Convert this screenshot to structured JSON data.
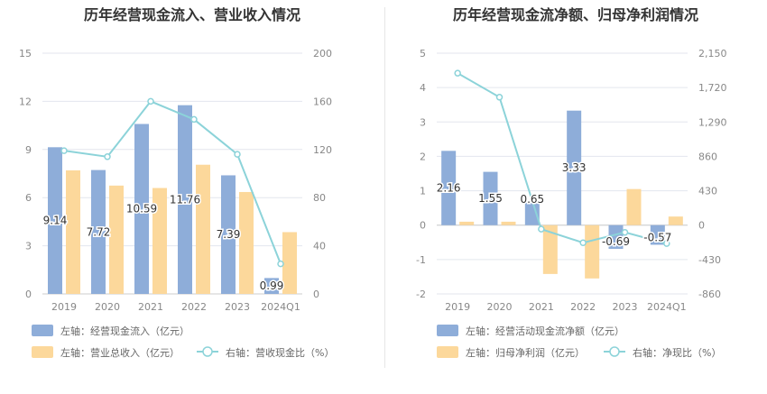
{
  "chart_data": [
    {
      "type": "bar",
      "title": "历年经营现金流入、营业收入情况",
      "categories": [
        "2019",
        "2020",
        "2021",
        "2022",
        "2023",
        "2024Q1"
      ],
      "y_left": {
        "min": 0,
        "max": 15,
        "ticks": [
          "0",
          "3",
          "6",
          "9",
          "12",
          "15"
        ]
      },
      "y_right": {
        "min": 0,
        "max": 200,
        "ticks": [
          "0",
          "40",
          "80",
          "120",
          "160",
          "200"
        ]
      },
      "series": [
        {
          "name": "左轴：经营现金流入（亿元）",
          "type": "bar",
          "axis": "left",
          "color": "#8eadd9",
          "values": [
            9.14,
            7.72,
            10.59,
            11.76,
            7.39,
            0.99
          ],
          "labels": [
            "9.14",
            "7.72",
            "10.59",
            "11.76",
            "7.39",
            "0.99"
          ]
        },
        {
          "name": "左轴：营业总收入（亿元）",
          "type": "bar",
          "axis": "left",
          "color": "#fcd89b",
          "values": [
            7.7,
            6.75,
            6.6,
            8.05,
            6.35,
            3.85
          ]
        },
        {
          "name": "右轴：营收现金比（%）",
          "type": "line",
          "axis": "right",
          "color": "#8cd3d9",
          "values": [
            119,
            114,
            160,
            145,
            116,
            25
          ]
        }
      ],
      "legend_position": "bottom"
    },
    {
      "type": "bar",
      "title": "历年经营现金流净额、归母净利润情况",
      "categories": [
        "2019",
        "2020",
        "2021",
        "2022",
        "2023",
        "2024Q1"
      ],
      "y_left": {
        "min": -2,
        "max": 5,
        "ticks": [
          "-2",
          "-1",
          "0",
          "1",
          "2",
          "3",
          "4",
          "5"
        ]
      },
      "y_right": {
        "min": -860,
        "max": 2150,
        "ticks": [
          "-860",
          "-430",
          "0",
          "430",
          "860",
          "1,290",
          "1,720",
          "2,150"
        ]
      },
      "series": [
        {
          "name": "左轴：经营活动现金流净额（亿元）",
          "type": "bar",
          "axis": "left",
          "color": "#8eadd9",
          "values": [
            2.16,
            1.55,
            0.65,
            3.33,
            -0.69,
            -0.57
          ],
          "labels": [
            "2.16",
            "1.55",
            "0.65",
            "3.33",
            "-0.69",
            "-0.57"
          ]
        },
        {
          "name": "左轴：归母净利润（亿元）",
          "type": "bar",
          "axis": "left",
          "color": "#fcd89b",
          "values": [
            0.1,
            0.1,
            -1.42,
            -1.55,
            1.05,
            0.25
          ]
        },
        {
          "name": "右轴：净现比（%）",
          "type": "line",
          "axis": "right",
          "color": "#8cd3d9",
          "values": [
            1900,
            1600,
            -50,
            -220,
            -90,
            -230
          ]
        }
      ],
      "legend_position": "bottom"
    }
  ]
}
